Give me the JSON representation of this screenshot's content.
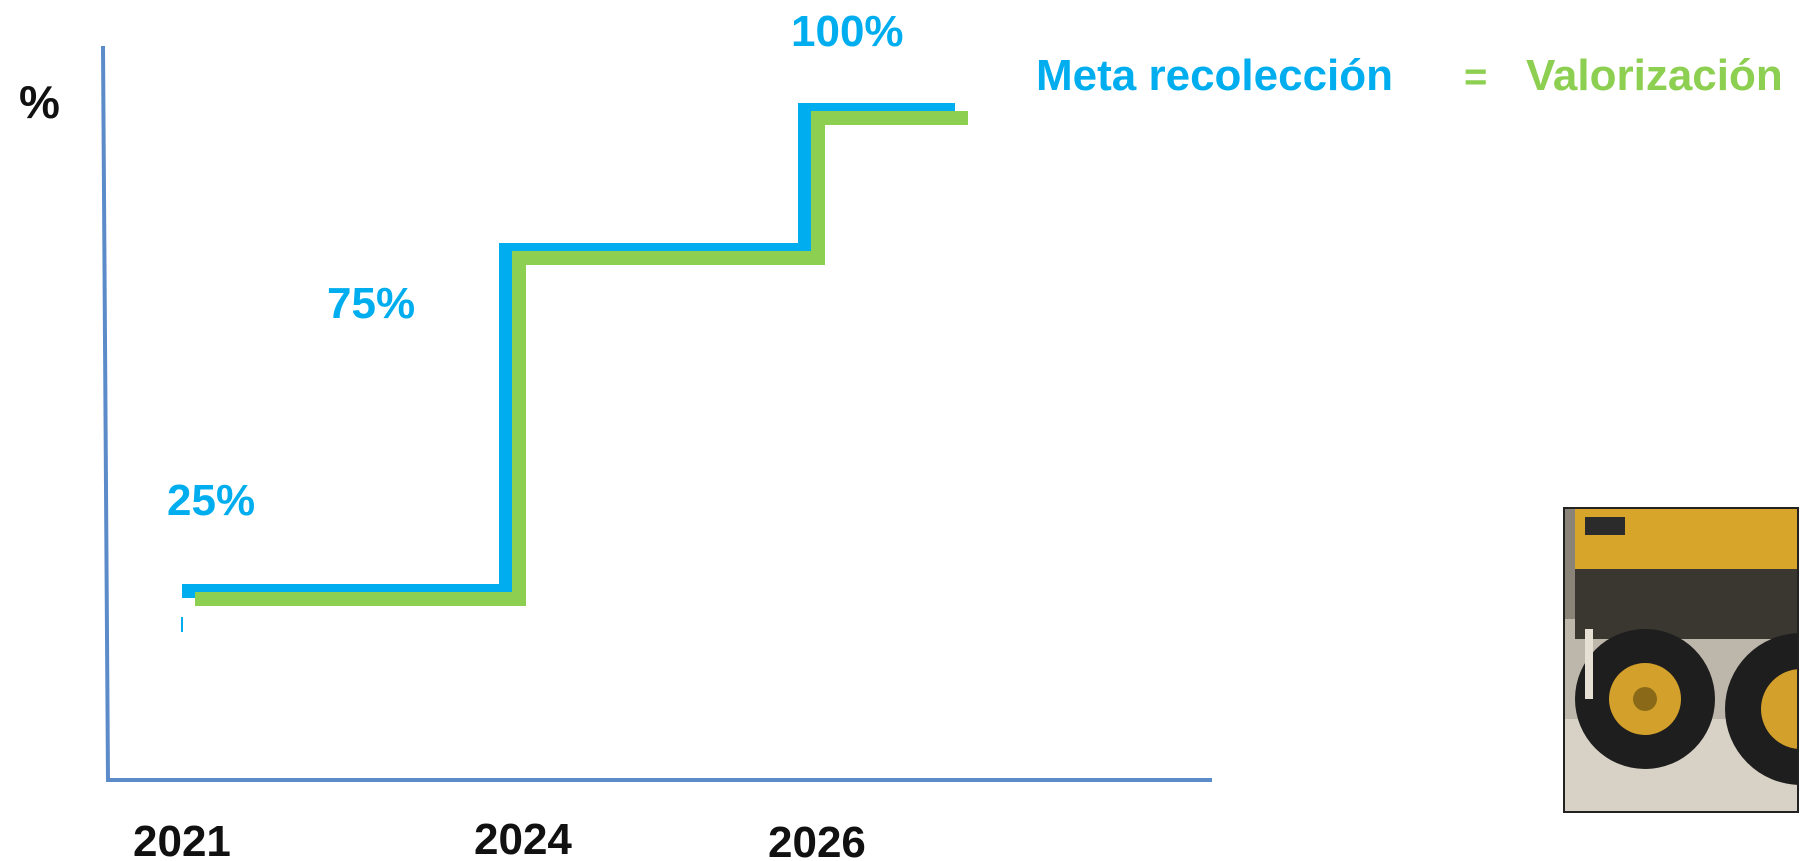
{
  "chart_data": {
    "type": "line",
    "step": true,
    "ylabel": "%",
    "categories": [
      "2021",
      "2024",
      "2026"
    ],
    "series": [
      {
        "name": "Meta recolección",
        "color": "#00AEEF",
        "values": [
          25,
          75,
          100
        ]
      },
      {
        "name": "Valorización",
        "color": "#8DCF50",
        "values": [
          25,
          75,
          100
        ]
      }
    ],
    "data_labels": [
      "25%",
      "75%",
      "100%"
    ],
    "ylim": [
      0,
      110
    ],
    "grid": false
  },
  "header": {
    "series_a": "Meta recolección",
    "equals": "=",
    "series_b": "Valorización"
  },
  "colors": {
    "axis": "#5B8BC9",
    "collection": "#00AEEF",
    "valorization": "#8DCF50",
    "text": "#111111"
  },
  "image": {
    "icon": "mining-truck-photo-icon"
  }
}
